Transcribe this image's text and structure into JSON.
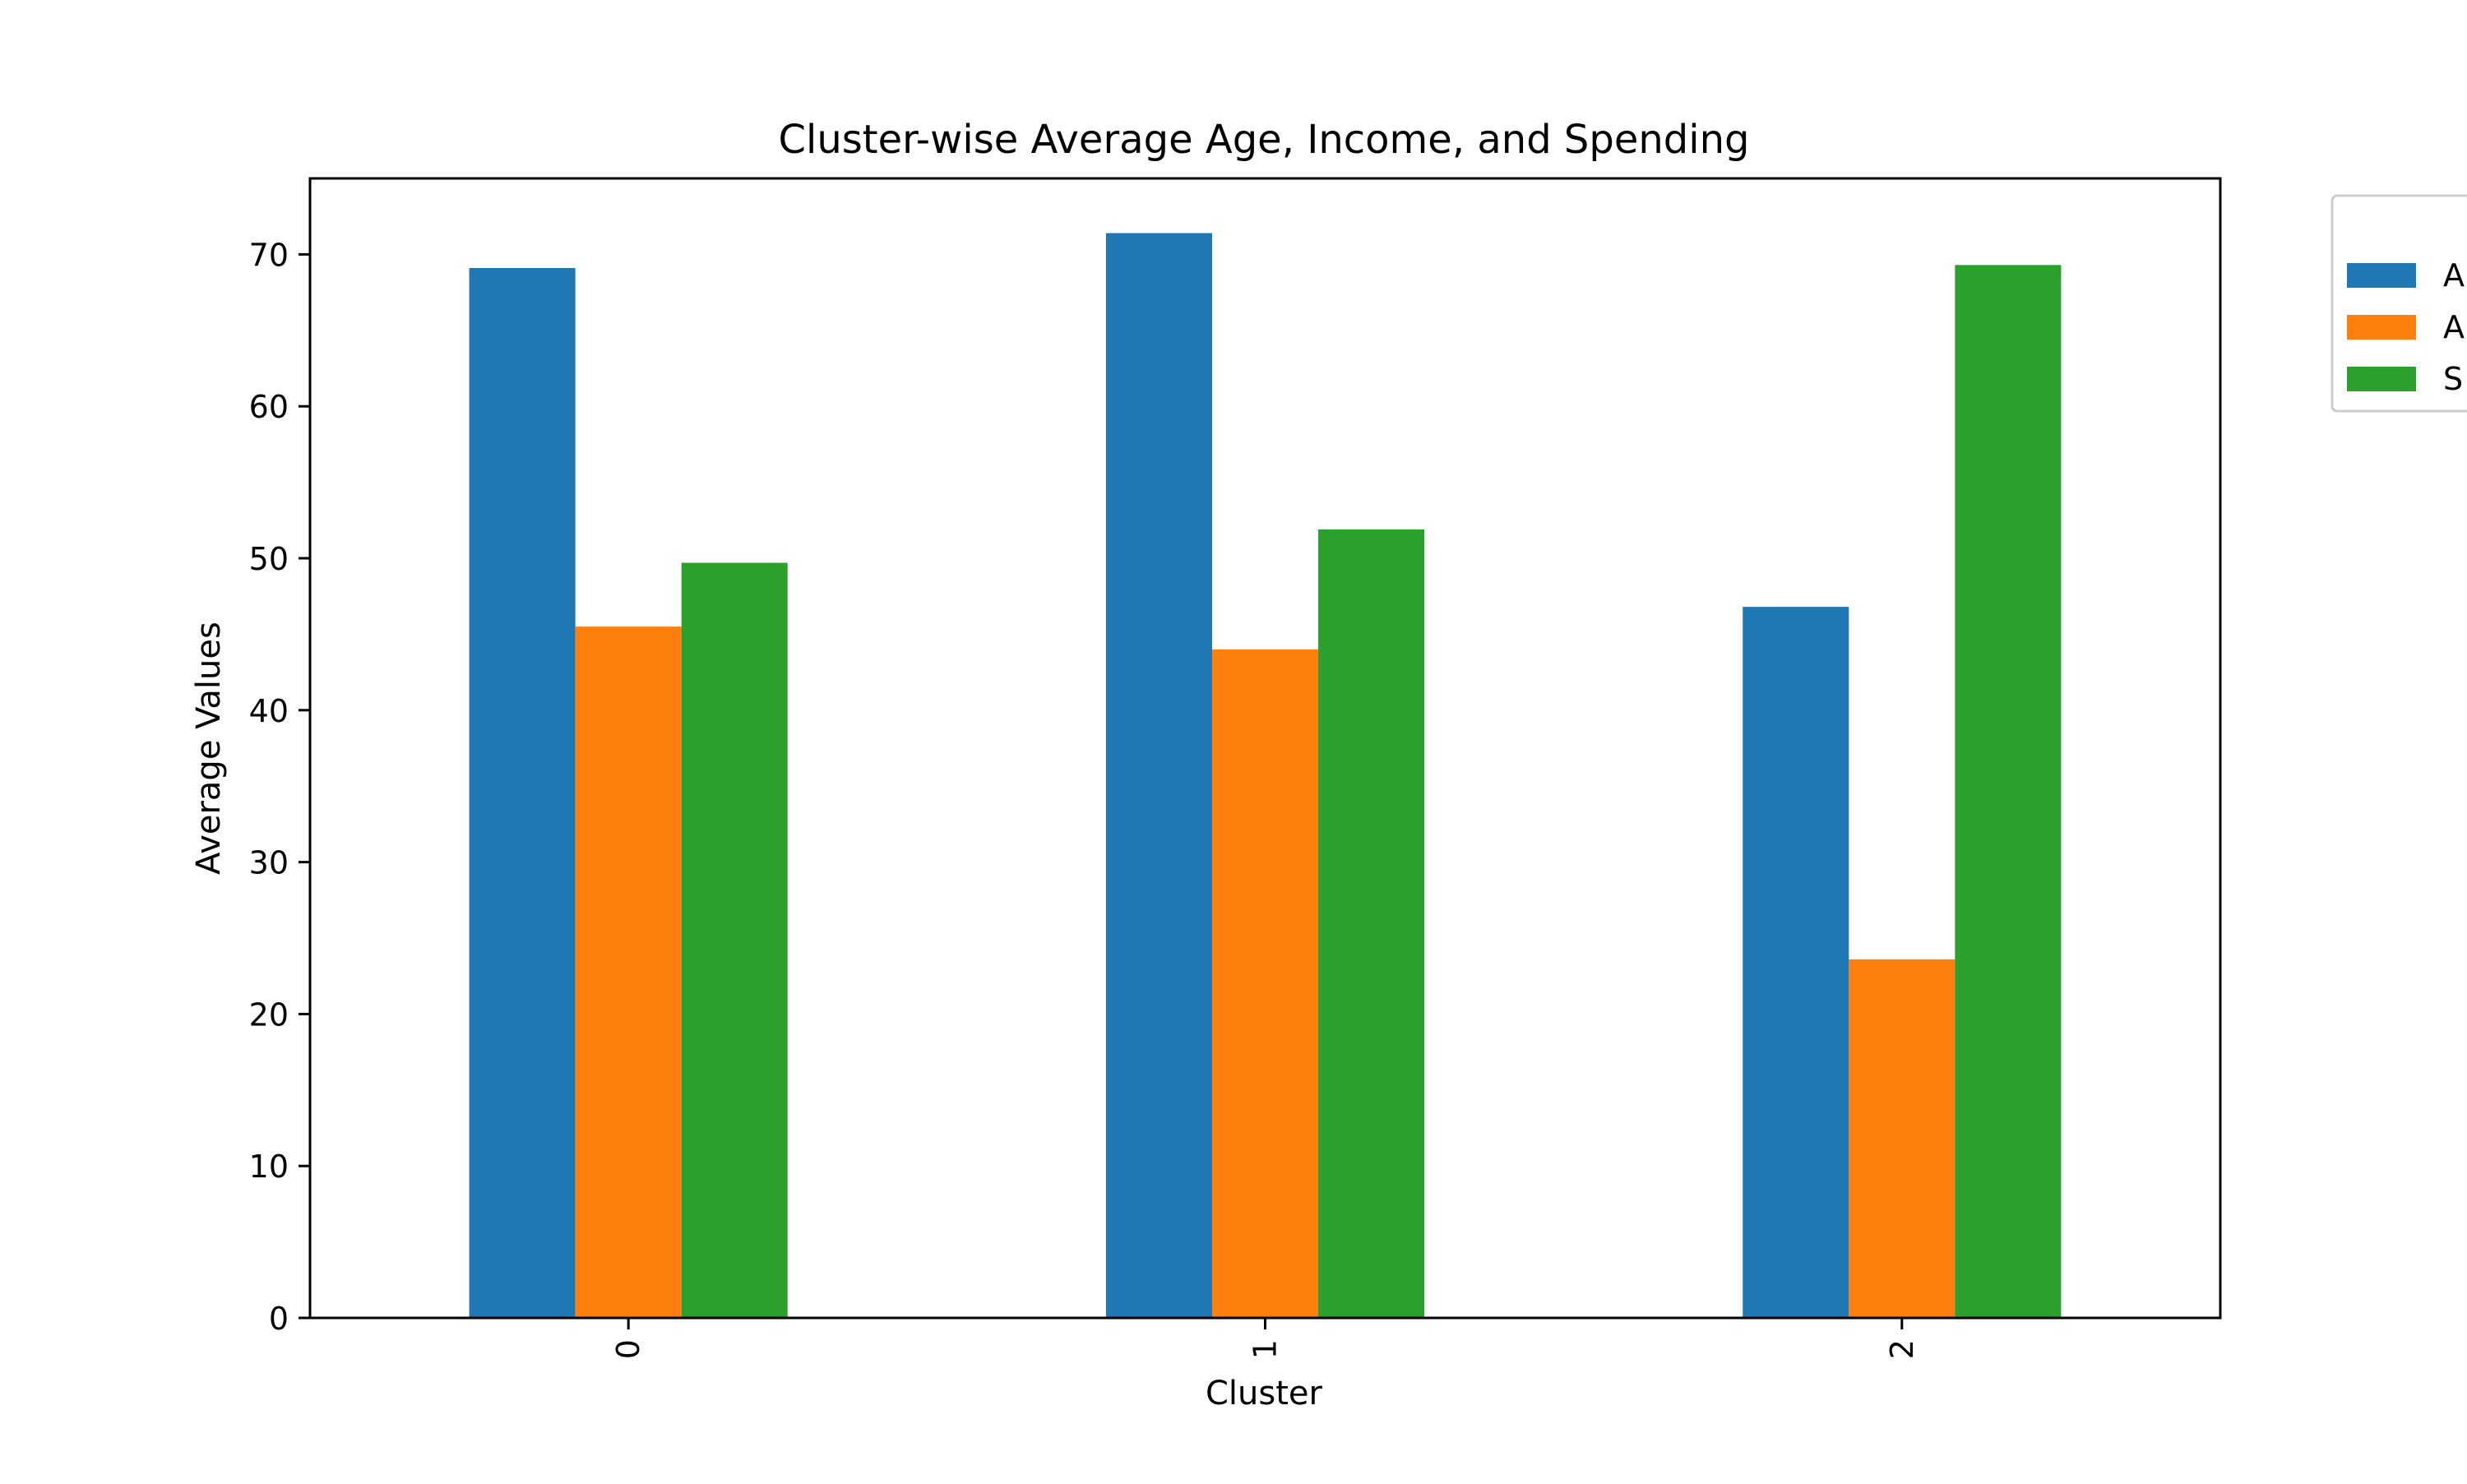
{
  "chart_data": {
    "type": "bar",
    "title": "Cluster-wise Average Age, Income, and Spending",
    "xlabel": "Cluster",
    "ylabel": "Average Values",
    "categories": [
      "0",
      "1",
      "2"
    ],
    "ylim": [
      0,
      75
    ],
    "yticks": [
      0,
      10,
      20,
      30,
      40,
      50,
      60,
      70
    ],
    "grid": false,
    "legend_position": "outside-top-right (clipped)",
    "series": [
      {
        "name": "A",
        "color": "#1f77b4",
        "values": [
          69.1,
          71.4,
          46.8
        ]
      },
      {
        "name": "A",
        "color": "#ff7f0e",
        "values": [
          45.5,
          44.0,
          23.6
        ]
      },
      {
        "name": "S",
        "color": "#2ca02c",
        "values": [
          49.7,
          51.9,
          69.3
        ]
      }
    ]
  }
}
